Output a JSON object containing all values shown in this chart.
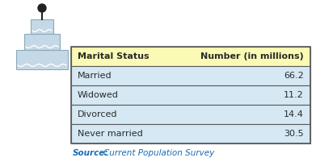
{
  "title_col1": "Marital Status",
  "title_col2": "Number (in millions)",
  "rows": [
    [
      "Married",
      "66.2"
    ],
    [
      "Widowed",
      "11.2"
    ],
    [
      "Divorced",
      "14.4"
    ],
    [
      "Never married",
      "30.5"
    ]
  ],
  "source_label": "Source:",
  "source_text": "Current Population Survey",
  "header_bg": "#FAFAB4",
  "row_bg": "#D5E8F3",
  "border_color": "#5A5A5A",
  "header_text_color": "#2B2B2B",
  "row_text_color": "#2B2B2B",
  "source_label_color": "#1A6BB5",
  "source_text_color": "#1A6BB5",
  "fig_bg": "#FFFFFF",
  "cake_color_top": "#C8D8E8",
  "cake_color_mid": "#C8D8E8",
  "cake_color_bot": "#C8D8E8"
}
